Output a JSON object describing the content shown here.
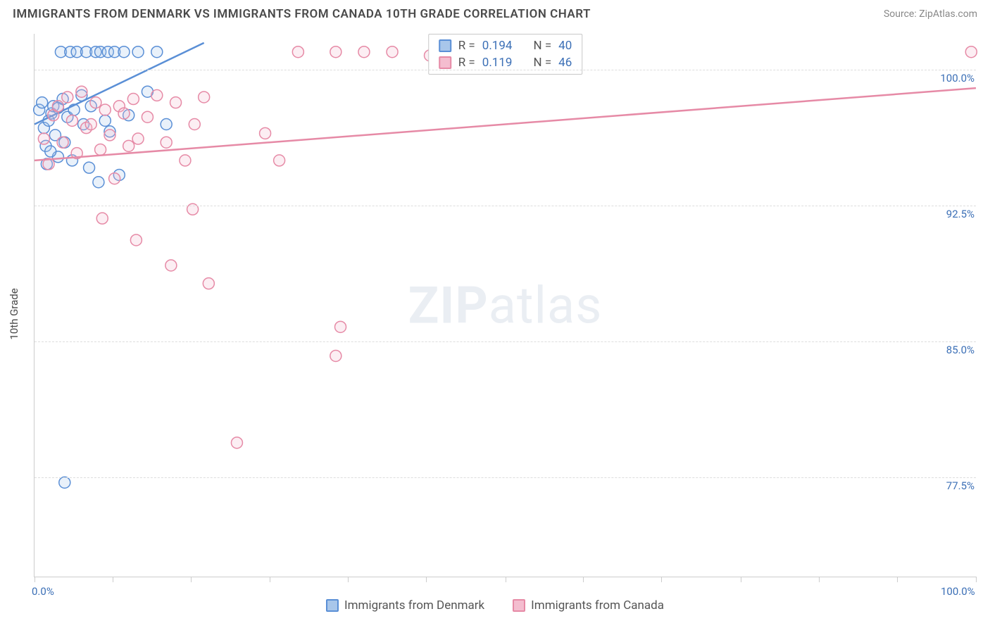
{
  "header": {
    "title": "IMMIGRANTS FROM DENMARK VS IMMIGRANTS FROM CANADA 10TH GRADE CORRELATION CHART",
    "source_label": "Source: ",
    "source_name": "ZipAtlas.com"
  },
  "ylabel": "10th Grade",
  "watermark_zip": "ZIP",
  "watermark_atlas": "atlas",
  "chart": {
    "type": "scatter",
    "xlim": [
      0,
      100
    ],
    "ylim": [
      72,
      102
    ],
    "x_ticks": [
      0,
      8.3,
      16.6,
      25,
      33.3,
      41.6,
      50,
      58.3,
      66.6,
      75,
      83.3,
      91.6,
      100
    ],
    "x_tick_labels_shown": {
      "0": "0.0%",
      "100": "100.0%"
    },
    "y_gridlines": [
      77.5,
      85.0,
      92.5,
      100.0
    ],
    "y_tick_labels": [
      "77.5%",
      "85.0%",
      "92.5%",
      "100.0%"
    ],
    "background_color": "#ffffff",
    "grid_color": "#dddddd",
    "axis_color": "#cccccc",
    "tick_label_color": "#3b6fb6",
    "marker_radius": 8,
    "marker_stroke_width": 1.5,
    "marker_fill_opacity": 0.25,
    "trend_line_width": 2.5
  },
  "series": [
    {
      "name": "Immigrants from Denmark",
      "color_stroke": "#5a8fd6",
      "color_fill": "#a8c6ea",
      "R_label": "R = ",
      "R": "0.194",
      "N_label": "N = ",
      "N": "40",
      "trend": {
        "x1": 0,
        "y1": 97.0,
        "x2": 18,
        "y2": 101.5
      },
      "points": [
        [
          0.5,
          97.8
        ],
        [
          0.8,
          98.2
        ],
        [
          1.0,
          96.8
        ],
        [
          1.2,
          95.8
        ],
        [
          1.3,
          94.8
        ],
        [
          1.5,
          97.2
        ],
        [
          1.8,
          97.6
        ],
        [
          2.0,
          98.0
        ],
        [
          2.2,
          96.4
        ],
        [
          2.5,
          95.2
        ],
        [
          2.8,
          101.0
        ],
        [
          3.0,
          98.4
        ],
        [
          3.2,
          96.0
        ],
        [
          3.5,
          97.4
        ],
        [
          3.8,
          101.0
        ],
        [
          4.0,
          95.0
        ],
        [
          4.2,
          97.8
        ],
        [
          4.5,
          101.0
        ],
        [
          5.0,
          98.6
        ],
        [
          5.2,
          97.0
        ],
        [
          5.5,
          101.0
        ],
        [
          5.8,
          94.6
        ],
        [
          6.0,
          98.0
        ],
        [
          6.5,
          101.0
        ],
        [
          6.8,
          93.8
        ],
        [
          7.0,
          101.0
        ],
        [
          7.5,
          97.2
        ],
        [
          7.8,
          101.0
        ],
        [
          8.0,
          96.6
        ],
        [
          8.5,
          101.0
        ],
        [
          9.0,
          94.2
        ],
        [
          9.5,
          101.0
        ],
        [
          10.0,
          97.5
        ],
        [
          11.0,
          101.0
        ],
        [
          12.0,
          98.8
        ],
        [
          13.0,
          101.0
        ],
        [
          14.0,
          97.0
        ],
        [
          3.2,
          77.2
        ],
        [
          2.5,
          97.9
        ],
        [
          1.7,
          95.5
        ]
      ]
    },
    {
      "name": "Immigrants from Canada",
      "color_stroke": "#e68aa6",
      "color_fill": "#f4bdcf",
      "R_label": "R = ",
      "R": "0.119",
      "N_label": "N = ",
      "N": "46",
      "trend": {
        "x1": 0,
        "y1": 95.0,
        "x2": 100,
        "y2": 99.0
      },
      "points": [
        [
          1.0,
          96.2
        ],
        [
          1.5,
          94.8
        ],
        [
          2.0,
          97.5
        ],
        [
          2.5,
          98.0
        ],
        [
          3.0,
          96.0
        ],
        [
          3.5,
          98.5
        ],
        [
          4.0,
          97.2
        ],
        [
          4.5,
          95.4
        ],
        [
          5.0,
          98.8
        ],
        [
          5.5,
          96.8
        ],
        [
          6.0,
          97.0
        ],
        [
          6.5,
          98.2
        ],
        [
          7.0,
          95.6
        ],
        [
          7.5,
          97.8
        ],
        [
          8.0,
          96.4
        ],
        [
          8.5,
          94.0
        ],
        [
          9.0,
          98.0
        ],
        [
          9.5,
          97.6
        ],
        [
          10.0,
          95.8
        ],
        [
          10.5,
          98.4
        ],
        [
          11.0,
          96.2
        ],
        [
          12.0,
          97.4
        ],
        [
          13.0,
          98.6
        ],
        [
          14.0,
          96.0
        ],
        [
          15.0,
          98.2
        ],
        [
          16.0,
          95.0
        ],
        [
          17.0,
          97.0
        ],
        [
          18.0,
          98.5
        ],
        [
          7.2,
          91.8
        ],
        [
          10.8,
          90.6
        ],
        [
          14.5,
          89.2
        ],
        [
          16.8,
          92.3
        ],
        [
          18.5,
          88.2
        ],
        [
          24.5,
          96.5
        ],
        [
          28.0,
          101.0
        ],
        [
          32.0,
          101.0
        ],
        [
          35.0,
          101.0
        ],
        [
          38.0,
          101.0
        ],
        [
          42.0,
          100.8
        ],
        [
          46.0,
          101.0
        ],
        [
          52.0,
          101.0
        ],
        [
          99.5,
          101.0
        ],
        [
          26.0,
          95.0
        ],
        [
          32.5,
          85.8
        ],
        [
          32.0,
          84.2
        ],
        [
          21.5,
          79.4
        ]
      ]
    }
  ],
  "legend": {
    "items": [
      {
        "label": "Immigrants from Denmark",
        "stroke": "#5a8fd6",
        "fill": "#a8c6ea"
      },
      {
        "label": "Immigrants from Canada",
        "stroke": "#e68aa6",
        "fill": "#f4bdcf"
      }
    ]
  }
}
